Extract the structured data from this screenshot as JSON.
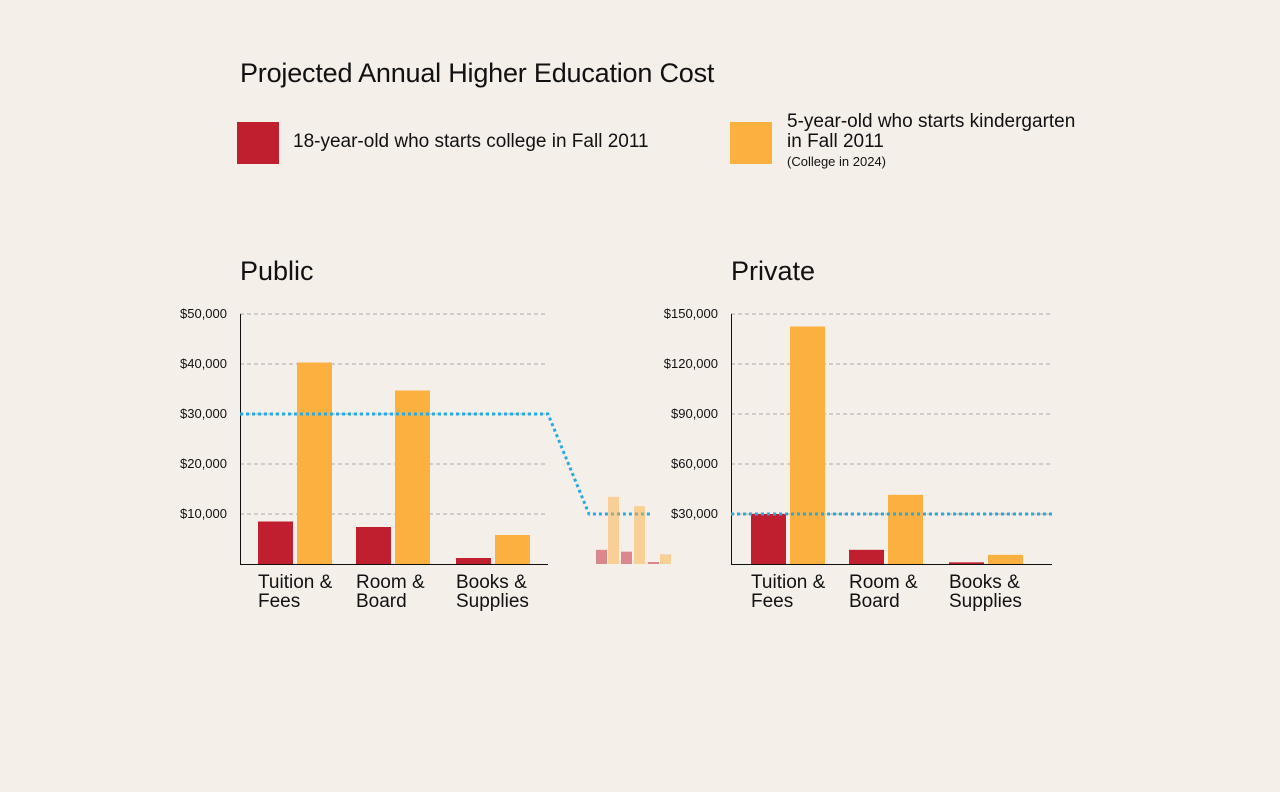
{
  "title": "Projected Annual Higher Education Cost",
  "colors": {
    "series_2011": "#c01f2f",
    "series_2024": "#fbb040",
    "threshold": "#27aae1",
    "grid": "#aaaaaa",
    "background": "#f5efea"
  },
  "legend": [
    {
      "label": "18-year-old who starts college in Fall 2011",
      "note": ""
    },
    {
      "label_lines": [
        "5-year-old who starts kindergarten",
        "in Fall 2011"
      ],
      "note": "(College in 2024)"
    }
  ],
  "chart_data": [
    {
      "type": "bar",
      "title": "Public",
      "categories": [
        [
          "Tuition &",
          "Fees"
        ],
        [
          "Room &",
          "Board"
        ],
        [
          "Books &",
          "Supplies"
        ]
      ],
      "series": [
        {
          "values": [
            8500,
            7400,
            1200
          ]
        },
        {
          "values": [
            40300,
            34700,
            5800
          ]
        }
      ],
      "yticks": [
        "$50,000",
        "$40,000",
        "$30,000",
        "$20,000",
        "$10,000"
      ],
      "ylim": [
        0,
        50000
      ],
      "grid": true,
      "reference_line": 30000
    },
    {
      "type": "bar",
      "title": "Private",
      "categories": [
        [
          "Tuition &",
          "Fees"
        ],
        [
          "Room &",
          "Board"
        ],
        [
          "Books &",
          "Supplies"
        ]
      ],
      "series": [
        {
          "values": [
            30000,
            8500,
            1000
          ]
        },
        {
          "values": [
            142500,
            41500,
            5500
          ]
        }
      ],
      "yticks": [
        "$150,000",
        "$120,000",
        "$90,000",
        "$60,000",
        "$30,000"
      ],
      "ylim": [
        0,
        150000
      ],
      "grid": true,
      "reference_line": 30000
    }
  ]
}
